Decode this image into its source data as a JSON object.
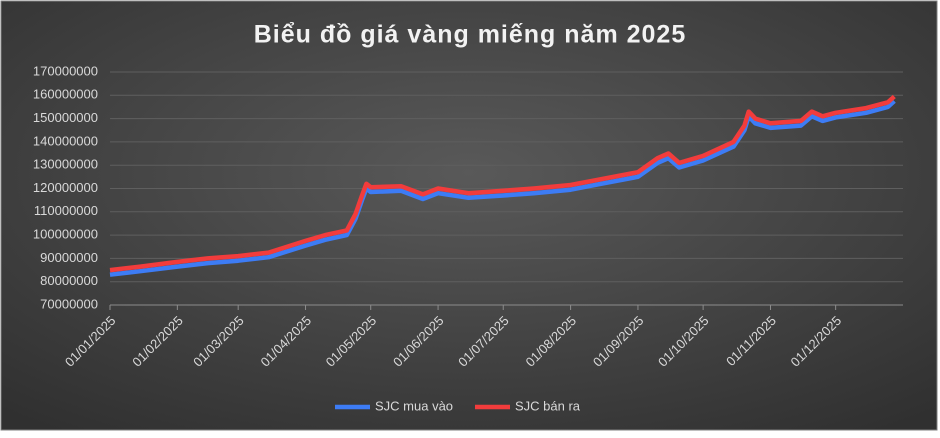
{
  "chart_data": {
    "type": "line",
    "title": "Biểu đồ giá vàng miếng năm 2025",
    "x": [
      "01/01/2025",
      "15/01/2025",
      "01/02/2025",
      "15/02/2025",
      "01/03/2025",
      "15/03/2025",
      "01/04/2025",
      "10/04/2025",
      "20/04/2025",
      "24/04/2025",
      "27/04/2025",
      "29/04/2025",
      "01/05/2025",
      "15/05/2025",
      "25/05/2025",
      "01/06/2025",
      "15/06/2025",
      "01/07/2025",
      "15/07/2025",
      "01/08/2025",
      "15/08/2025",
      "01/09/2025",
      "10/09/2025",
      "15/09/2025",
      "20/09/2025",
      "01/10/2025",
      "15/10/2025",
      "20/10/2025",
      "22/10/2025",
      "25/10/2025",
      "01/11/2025",
      "15/11/2025",
      "20/11/2025",
      "25/11/2025",
      "01/12/2025",
      "15/12/2025",
      "25/12/2025",
      "28/12/2025"
    ],
    "series": [
      {
        "name": "SJC mua vào",
        "color": "#3d7cf5",
        "values": [
          83000000,
          84500000,
          86500000,
          88000000,
          89000000,
          90500000,
          95500000,
          98000000,
          100000000,
          107000000,
          115000000,
          120000000,
          118500000,
          119000000,
          115500000,
          118000000,
          116000000,
          117000000,
          118000000,
          119500000,
          122000000,
          125000000,
          131000000,
          133000000,
          129000000,
          132000000,
          138000000,
          145000000,
          151000000,
          148000000,
          146000000,
          147000000,
          151000000,
          149000000,
          150500000,
          152500000,
          155000000,
          157500000
        ]
      },
      {
        "name": "SJC bán ra",
        "color": "#f23c3c",
        "values": [
          85000000,
          86500000,
          88500000,
          90000000,
          91000000,
          92500000,
          97500000,
          100000000,
          102000000,
          109000000,
          117000000,
          122000000,
          120500000,
          121000000,
          117500000,
          120000000,
          118000000,
          119000000,
          120000000,
          121500000,
          124000000,
          127000000,
          133000000,
          135000000,
          131000000,
          134000000,
          140000000,
          147000000,
          153000000,
          150000000,
          148000000,
          149000000,
          153000000,
          151000000,
          152500000,
          154500000,
          157000000,
          159500000
        ]
      }
    ],
    "xlim": [
      "01/01/2025",
      "01/01/2026"
    ],
    "xticks": [
      "01/01/2025",
      "01/02/2025",
      "01/03/2025",
      "01/04/2025",
      "01/05/2025",
      "01/06/2025",
      "01/07/2025",
      "01/08/2025",
      "01/09/2025",
      "01/10/2025",
      "01/11/2025",
      "01/12/2025"
    ],
    "ylim": [
      70000000,
      170000000
    ],
    "yticks": [
      70000000,
      80000000,
      90000000,
      100000000,
      110000000,
      120000000,
      130000000,
      140000000,
      150000000,
      160000000,
      170000000
    ],
    "grid": true,
    "legend": "bottom"
  }
}
